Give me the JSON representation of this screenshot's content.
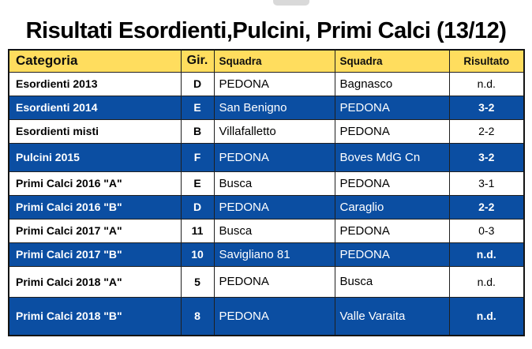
{
  "title": "Risultati Esordienti,Pulcini, Primi Calci (13/12)",
  "colors": {
    "header_bg": "#FFDD5E",
    "row_highlight_blue": "#0B4EA2",
    "row_default_bg": "#FFFFFF",
    "border": "#1F1F1F",
    "highlight_text": "#FFFFFF",
    "default_text": "#000000"
  },
  "table": {
    "headers": [
      "Categoria",
      "Gir.",
      "Squadra",
      "Squadra",
      "Risultato"
    ],
    "rows": [
      {
        "categoria": "Esordienti 2013",
        "gir": "D",
        "squadra1": "PEDONA",
        "squadra2": "Bagnasco",
        "risultato": "n.d.",
        "highlight": false
      },
      {
        "categoria": "Esordienti 2014",
        "gir": "E",
        "squadra1": "San Benigno",
        "squadra2": "PEDONA",
        "risultato": "3-2",
        "highlight": true
      },
      {
        "categoria": "Esordienti misti",
        "gir": "B",
        "squadra1": "Villafalletto",
        "squadra2": "PEDONA",
        "risultato": "2-2",
        "highlight": false
      },
      {
        "categoria": "Pulcini 2015",
        "gir": "F",
        "squadra1": "PEDONA",
        "squadra2": "Boves MdG Cn",
        "risultato": "3-2",
        "highlight": true
      },
      {
        "categoria": "Primi Calci 2016 \"A\"",
        "gir": "E",
        "squadra1": "Busca",
        "squadra2": "PEDONA",
        "risultato": "3-1",
        "highlight": false
      },
      {
        "categoria": "Primi Calci 2016 \"B\"",
        "gir": "D",
        "squadra1": "PEDONA",
        "squadra2": "Caraglio",
        "risultato": "2-2",
        "highlight": true
      },
      {
        "categoria": "Primi Calci 2017 \"A\"",
        "gir": "11",
        "squadra1": "Busca",
        "squadra2": "PEDONA",
        "risultato": "0-3",
        "highlight": false
      },
      {
        "categoria": "Primi Calci 2017 \"B\"",
        "gir": "10",
        "squadra1": "Savigliano 81",
        "squadra2": "PEDONA",
        "risultato": "n.d.",
        "highlight": true
      },
      {
        "categoria": "Primi Calci 2018 \"A\"",
        "gir": "5",
        "squadra1": "PEDONA",
        "squadra2": "Busca",
        "risultato": "n.d.",
        "highlight": false
      },
      {
        "categoria": "Primi Calci 2018 \"B\"",
        "gir": "8",
        "squadra1": "PEDONA",
        "squadra2": "Valle Varaita",
        "risultato": "n.d.",
        "highlight": true
      }
    ]
  }
}
